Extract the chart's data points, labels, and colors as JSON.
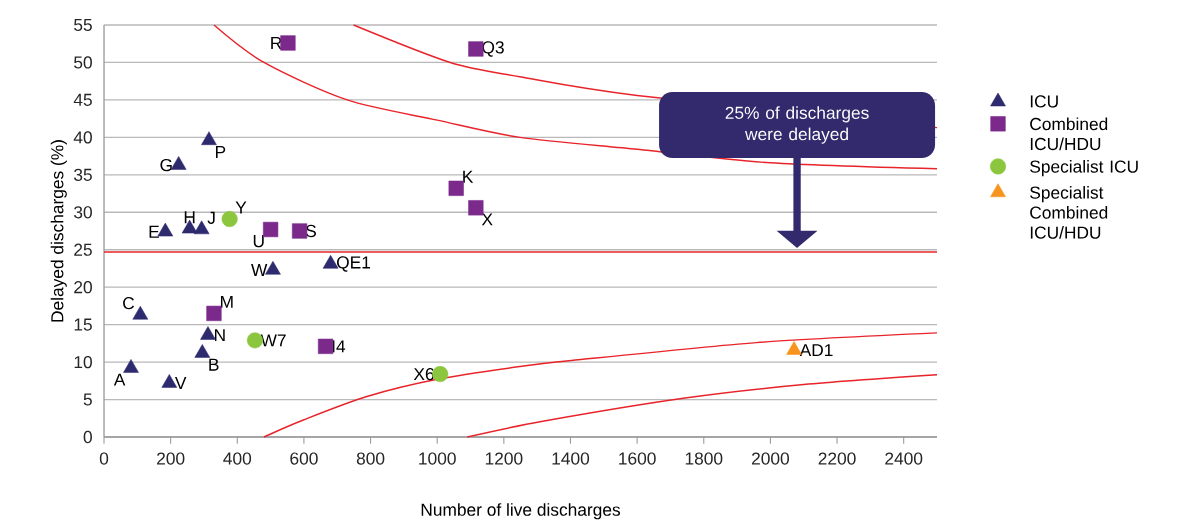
{
  "chart_data": {
    "type": "scatter",
    "xlabel": "Number of live discharges",
    "ylabel": "Delayed discharges (%)",
    "xlim": [
      0,
      2500
    ],
    "ylim": [
      0,
      55
    ],
    "xticks": [
      0,
      200,
      400,
      600,
      800,
      1000,
      1200,
      1400,
      1600,
      1800,
      2000,
      2200,
      2400
    ],
    "yticks": [
      0,
      5,
      10,
      15,
      20,
      25,
      30,
      35,
      40,
      45,
      50,
      55
    ],
    "grid": "y",
    "legend": "right",
    "series": [
      {
        "name": "ICU",
        "color": "#2e2a6e",
        "marker": "triangle",
        "x": [
          81,
          196,
          295,
          312,
          109,
          184,
          257,
          293,
          224,
          315,
          507,
          680
        ],
        "values": [
          9.2,
          7.2,
          11.2,
          13.6,
          16.3,
          27.4,
          27.8,
          27.7,
          36.3,
          39.6,
          22.3,
          23.1
        ]
      },
      {
        "name": "Combined ICU/HDU",
        "color": "#7b2a8c",
        "marker": "square",
        "x": [
          552,
          1116,
          1057,
          1116,
          500,
          587,
          330,
          665
        ],
        "values": [
          52.6,
          51.8,
          33.2,
          30.6,
          27.7,
          27.5,
          16.5,
          12.1
        ]
      },
      {
        "name": "Specialist ICU",
        "color": "#8cc63f",
        "marker": "circle",
        "x": [
          377,
          453,
          1009
        ],
        "values": [
          29.1,
          12.9,
          8.4
        ]
      },
      {
        "name": "Specialist Combined ICU/HDU",
        "color": "#f7941d",
        "marker": "triangle",
        "x": [
          2071
        ],
        "values": [
          11.6
        ]
      },
      {
        "type": "line",
        "color": "#e8242a",
        "x": [
          330,
          480,
          730,
          1000,
          1248,
          1600,
          2000,
          2500
        ],
        "values": [
          55,
          50,
          45,
          42.3,
          40,
          38.4,
          36.6,
          35.8
        ]
      },
      {
        "type": "line",
        "color": "#e8242a",
        "x": [
          749,
          1039,
          1248,
          1600,
          2500
        ],
        "values": [
          55,
          50,
          48.1,
          45.6,
          41.3
        ]
      },
      {
        "type": "line",
        "color": "#e8242a",
        "x": [
          480,
          600,
          789,
          1000,
          1248,
          1403,
          1958,
          2500
        ],
        "values": [
          0,
          2.3,
          5.4,
          7.7,
          9.4,
          10.2,
          12.6,
          13.9
        ]
      },
      {
        "type": "line",
        "color": "#e8242a",
        "x": [
          1090,
          1317,
          1744,
          2100,
          2500
        ],
        "values": [
          0,
          2.1,
          5.2,
          7,
          8.3
        ]
      }
    ],
    "ref_lines": [
      {
        "axis": "y",
        "value": 24.7,
        "color": "#e8242a"
      }
    ],
    "annotations": [
      {
        "text": "A",
        "x": 81,
        "y": 9.2
      },
      {
        "text": "V",
        "x": 196,
        "y": 7.2
      },
      {
        "text": "B",
        "x": 295,
        "y": 11.2
      },
      {
        "text": "N",
        "x": 312,
        "y": 13.6
      },
      {
        "text": "C",
        "x": 109,
        "y": 16.3
      },
      {
        "text": "E",
        "x": 184,
        "y": 27.4
      },
      {
        "text": "H",
        "x": 257,
        "y": 27.8
      },
      {
        "text": "J",
        "x": 293,
        "y": 27.7
      },
      {
        "text": "G",
        "x": 224,
        "y": 36.3
      },
      {
        "text": "P",
        "x": 315,
        "y": 39.6
      },
      {
        "text": "W",
        "x": 507,
        "y": 22.3
      },
      {
        "text": "QE1",
        "x": 680,
        "y": 23.1
      },
      {
        "text": "R",
        "x": 552,
        "y": 52.6
      },
      {
        "text": "Q3",
        "x": 1116,
        "y": 51.8
      },
      {
        "text": "K",
        "x": 1057,
        "y": 33.2
      },
      {
        "text": "X",
        "x": 1116,
        "y": 30.6
      },
      {
        "text": "U",
        "x": 500,
        "y": 27.7
      },
      {
        "text": "S",
        "x": 587,
        "y": 27.5
      },
      {
        "text": "M",
        "x": 330,
        "y": 16.5
      },
      {
        "text": "I4",
        "x": 665,
        "y": 12.1
      },
      {
        "text": "Y",
        "x": 377,
        "y": 29.1
      },
      {
        "text": "W7",
        "x": 453,
        "y": 12.9
      },
      {
        "text": "X6",
        "x": 1009,
        "y": 8.4
      },
      {
        "text": "AD1",
        "x": 2071,
        "y": 11.6
      },
      "25% of discharges were delayed"
    ]
  }
}
